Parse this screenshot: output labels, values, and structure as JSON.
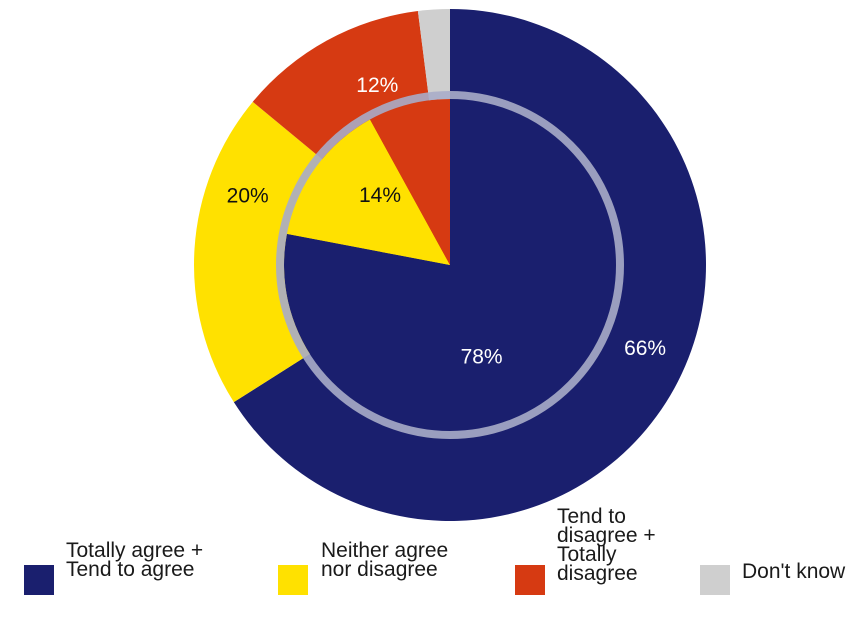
{
  "chart_data": {
    "type": "pie",
    "categories": [
      "Totally agree + Tend to agree",
      "Neither agree nor disagree",
      "Tend to disagree + Totally disagree",
      "Don't know"
    ],
    "colors": [
      "#1a1f6e",
      "#ffe100",
      "#d63a12",
      "#cfcfcf"
    ],
    "ring_color": "#a9acc8",
    "series": [
      {
        "values": [
          66,
          20,
          12,
          2
        ],
        "labels": [
          "66%",
          "20%",
          "12%",
          ""
        ]
      },
      {
        "values": [
          78,
          14,
          8,
          0
        ],
        "labels": [
          "78%",
          "14%",
          "",
          ""
        ]
      }
    ],
    "legend": [
      {
        "lines": [
          "Totally agree +",
          "Tend to agree"
        ]
      },
      {
        "lines": [
          "Neither agree",
          "nor disagree"
        ]
      },
      {
        "lines": [
          "Tend to",
          "disagree +",
          "Totally",
          "disagree"
        ]
      },
      {
        "lines": [
          "Don't know"
        ]
      }
    ],
    "legend_position": "bottom"
  }
}
